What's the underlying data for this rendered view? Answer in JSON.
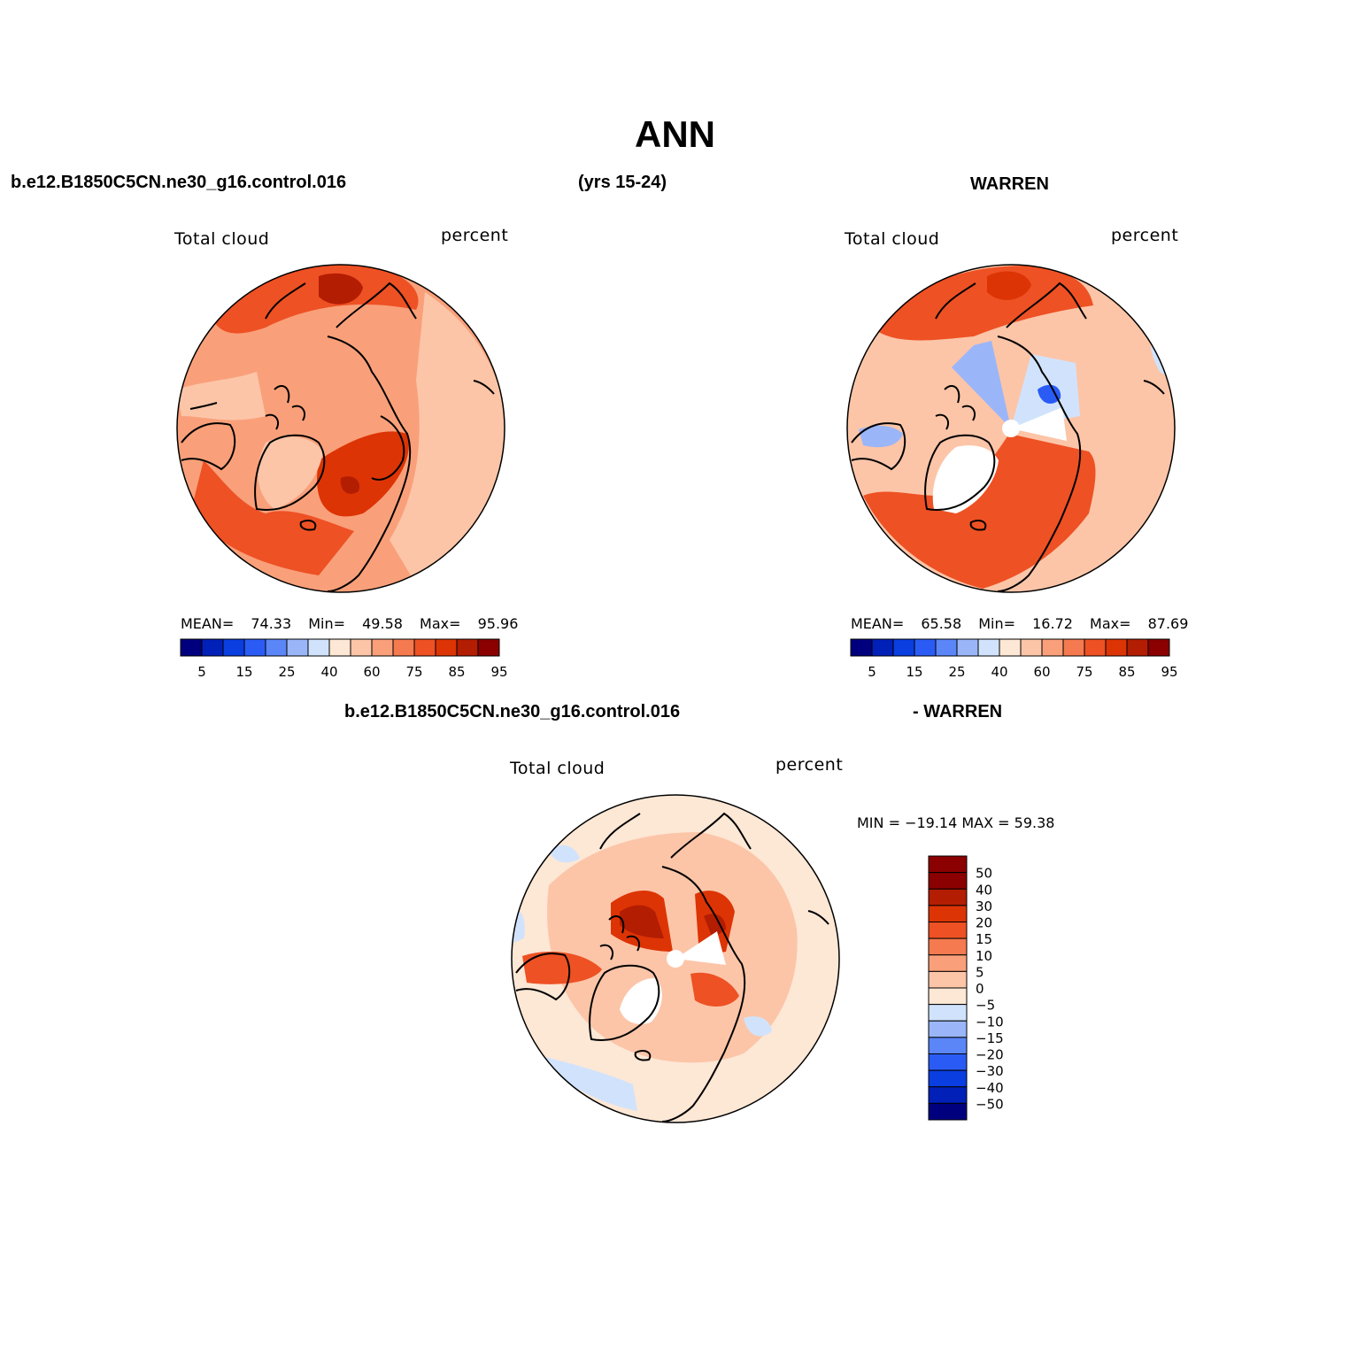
{
  "title": "ANN",
  "header": {
    "case_name": "b.e12.B1850C5CN.ne30_g16.control.016",
    "years": "(yrs 15-24)",
    "obs_name": "WARREN"
  },
  "diff_header": {
    "case_name": "b.e12.B1850C5CN.ne30_g16.control.016",
    "obs_name": "- WARREN"
  },
  "panels": {
    "model": {
      "variable": "Total cloud",
      "units": "percent",
      "mean_label": "MEAN=",
      "mean": "74.33",
      "min_label": "Min=",
      "min": "49.58",
      "max_label": "Max=",
      "max": "95.96"
    },
    "obs": {
      "variable": "Total cloud",
      "units": "percent",
      "mean_label": "MEAN=",
      "mean": "65.58",
      "min_label": "Min=",
      "min": "16.72",
      "max_label": "Max=",
      "max": "87.69"
    },
    "diff": {
      "variable": "Total cloud",
      "units": "percent",
      "minmax_text": "MIN = −19.14 MAX =   59.38"
    }
  },
  "abs_colorbar": {
    "colors": [
      "#00007f",
      "#0020b8",
      "#0a3ee0",
      "#2a5cf5",
      "#5a86f7",
      "#9ab6f9",
      "#d1e3fc",
      "#fde7d5",
      "#fcc5a8",
      "#f9a07a",
      "#f57a4f",
      "#ee5124",
      "#dd3405",
      "#b31d02",
      "#8b0000"
    ],
    "tick_labels": [
      "5",
      "15",
      "25",
      "40",
      "60",
      "75",
      "85",
      "95"
    ]
  },
  "diff_colorbar": {
    "colors": [
      "#8b0000",
      "#b31d02",
      "#dd3405",
      "#ee5124",
      "#f57a4f",
      "#f9a07a",
      "#fcc5a8",
      "#fde7d5",
      "#d1e3fc",
      "#9ab6f9",
      "#5a86f7",
      "#2a5cf5",
      "#0a3ee0",
      "#0020b8",
      "#00007f"
    ],
    "tick_labels": [
      "50",
      "40",
      "30",
      "20",
      "15",
      "10",
      "5",
      "0",
      "−5",
      "−10",
      "−15",
      "−20",
      "−30",
      "−40",
      "−50"
    ]
  },
  "map_fill_colors": {
    "model_base": "#f9a07a",
    "obs_base": "#fcc5a8",
    "diff_base": "#fde7d5",
    "ocean_light": "#fcc5a8",
    "dark": "#dd3405",
    "darker": "#b31d02",
    "mid": "#ee5124",
    "blue_light": "#d1e3fc",
    "blue_mid": "#9ab6f9",
    "blue_strong": "#2a5cf5"
  }
}
